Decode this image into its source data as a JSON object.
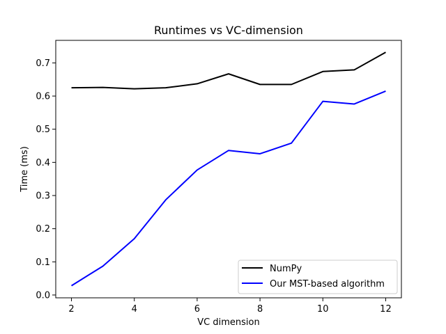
{
  "chart_data": {
    "type": "line",
    "title": "Runtimes vs VC-dimension",
    "xlabel": "VC dimension",
    "ylabel": "Time (ms)",
    "xlim": [
      1.5,
      12.5
    ],
    "ylim": [
      -0.0085,
      0.768
    ],
    "xticks": [
      2,
      4,
      6,
      8,
      10,
      12
    ],
    "yticks": [
      0.0,
      0.1,
      0.2,
      0.3,
      0.4,
      0.5,
      0.6,
      0.7
    ],
    "ytick_labels": [
      "0.0",
      "0.1",
      "0.2",
      "0.3",
      "0.4",
      "0.5",
      "0.6",
      "0.7"
    ],
    "grid": false,
    "legend_position": "lower-right",
    "x": [
      2,
      3,
      4,
      5,
      6,
      7,
      8,
      9,
      10,
      11,
      12
    ],
    "series": [
      {
        "name": "NumPy",
        "color": "#000000",
        "values": [
          0.625,
          0.626,
          0.622,
          0.625,
          0.637,
          0.667,
          0.635,
          0.635,
          0.674,
          0.679,
          0.732
        ]
      },
      {
        "name": "Our MST-based algorithm",
        "color": "#0000ff",
        "values": [
          0.028,
          0.087,
          0.17,
          0.287,
          0.377,
          0.436,
          0.426,
          0.458,
          0.584,
          0.576,
          0.615
        ]
      }
    ]
  }
}
